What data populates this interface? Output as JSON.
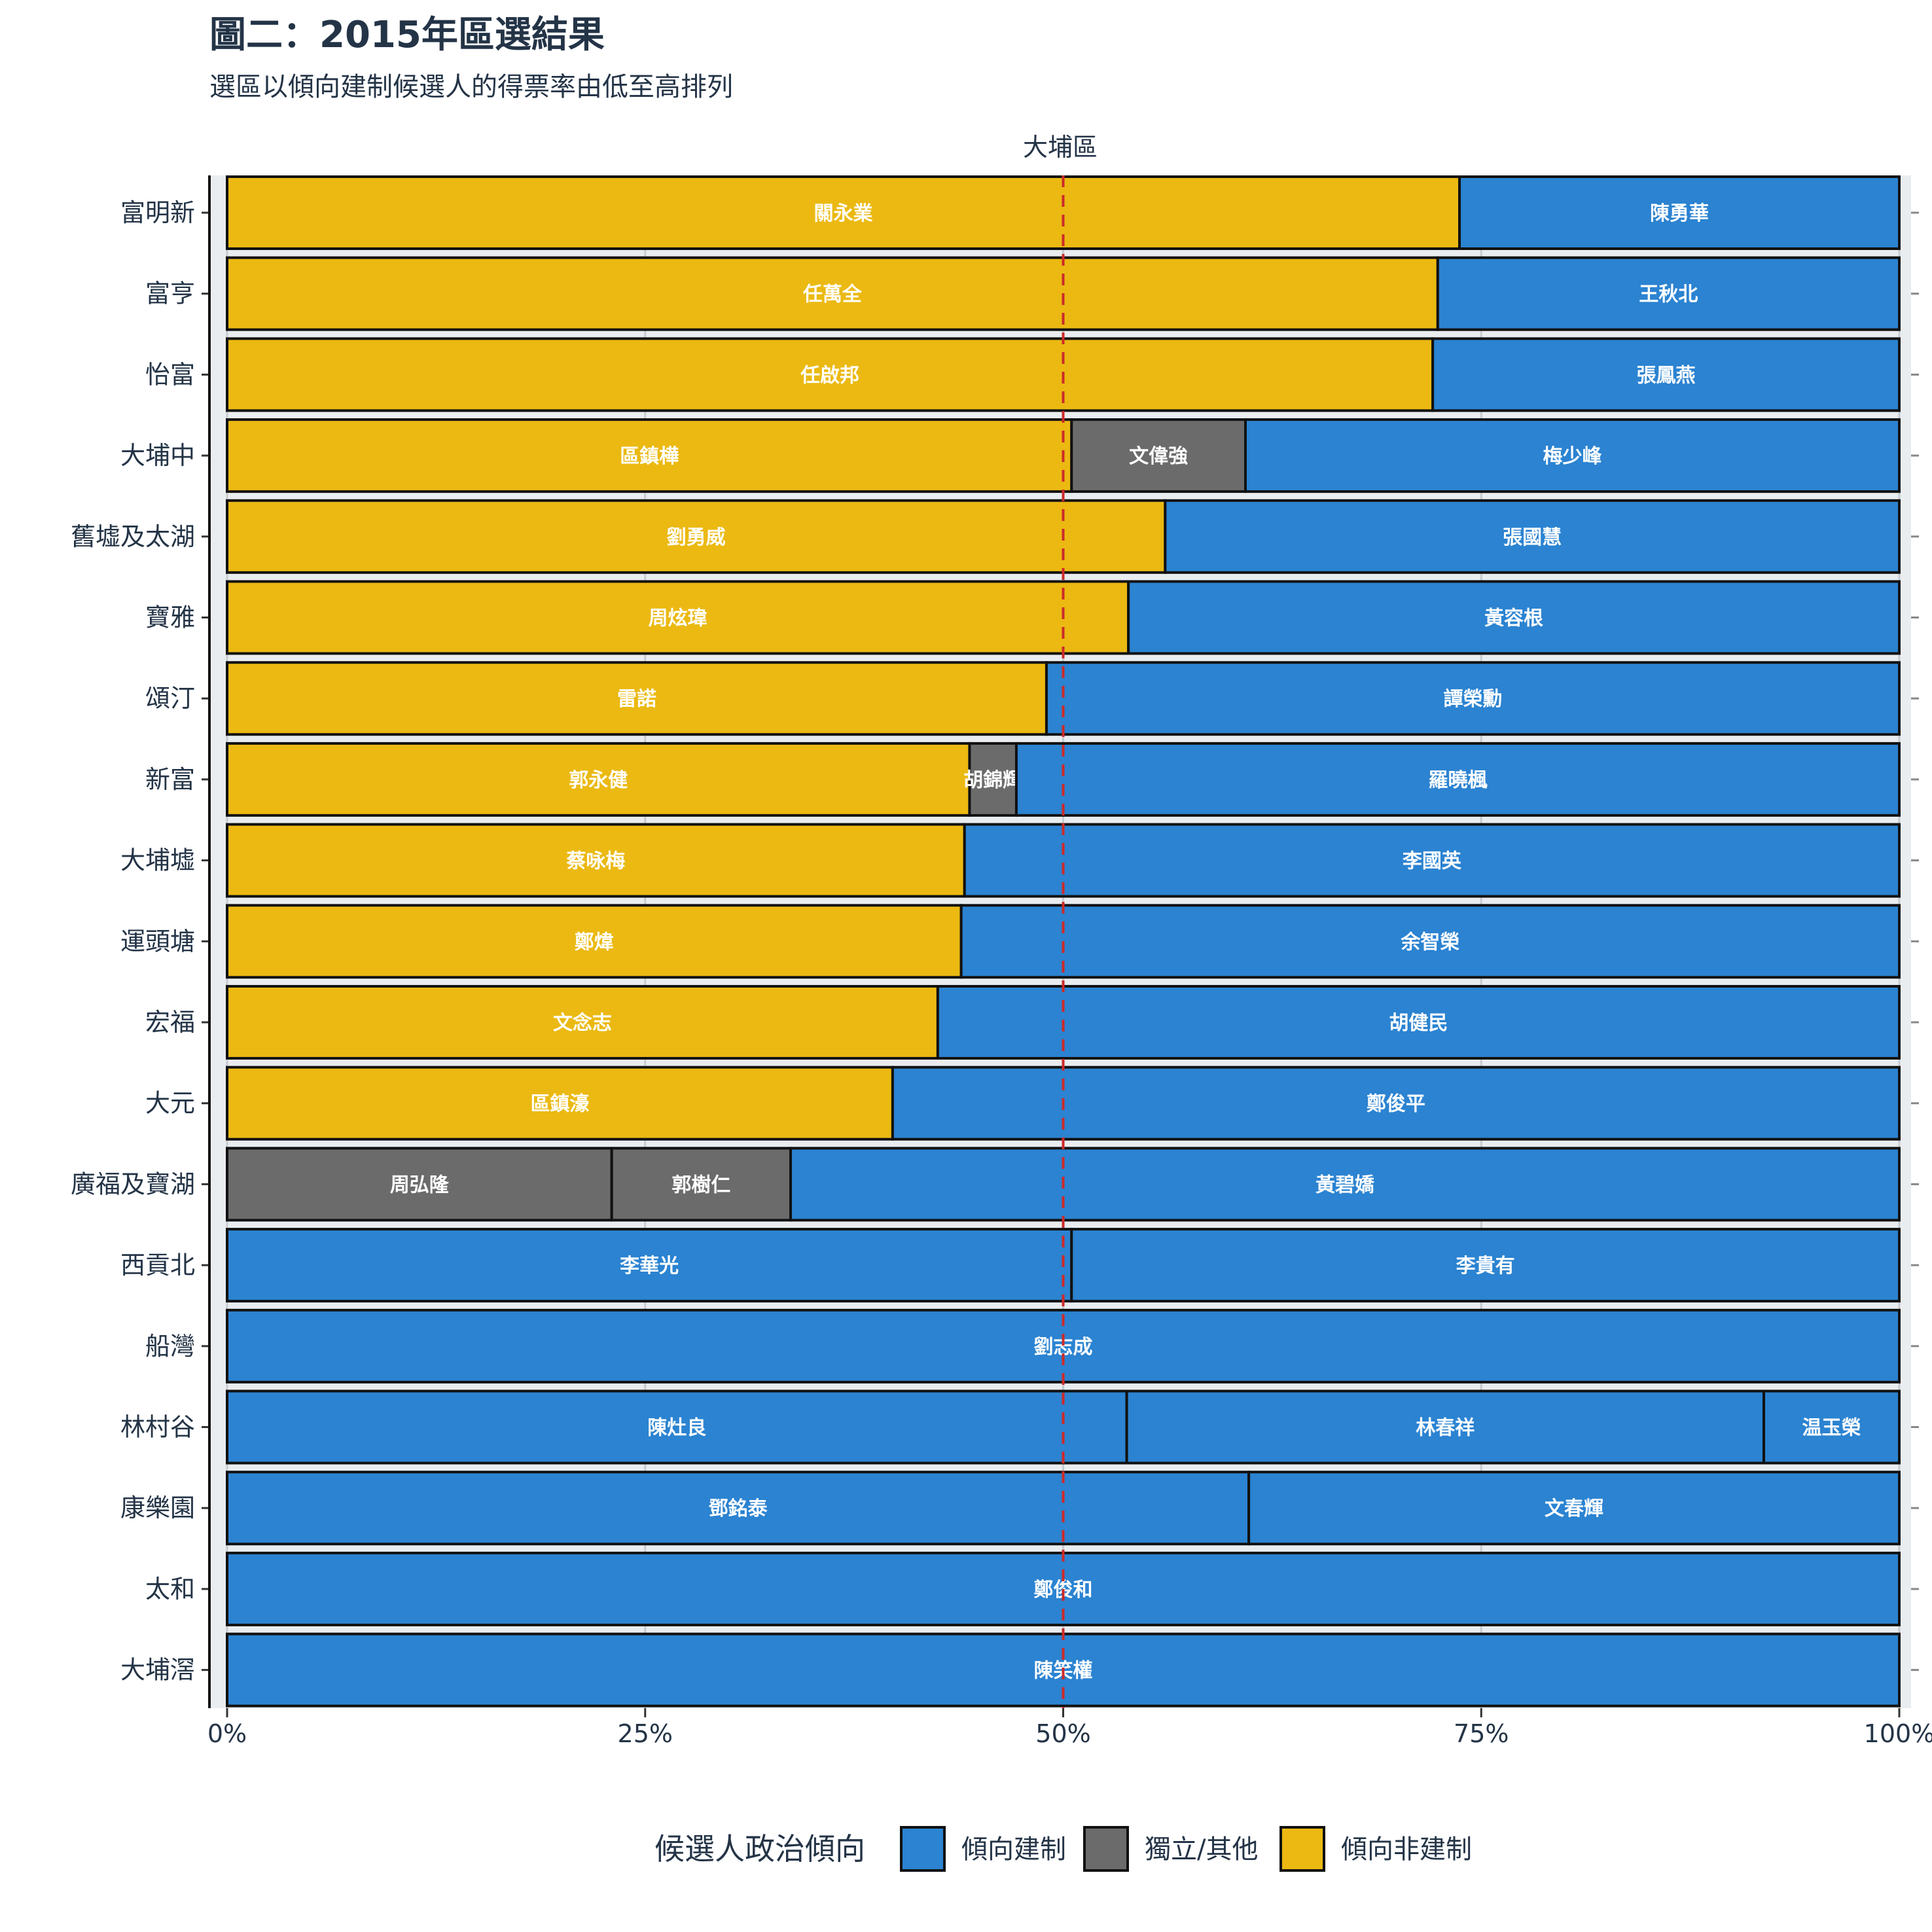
{
  "title": "圖二：2015年區選結果",
  "subtitle": "選區以傾向建制候選人的得票率由低至高排列",
  "colors": {
    "建制": "#2b83d1",
    "其他": "#6b6b6b",
    "非建制": "#ebb912",
    "ref_line": "#cc2a2a",
    "panel": "#eaedf0"
  },
  "chart_data": {
    "type": "bar",
    "orientation": "horizontal",
    "stacked_percent": true,
    "title": "圖二：2015年區選結果",
    "subtitle": "選區以傾向建制候選人的得票率由低至高排列",
    "facet": "大埔區",
    "xlabel": "",
    "ylabel": "",
    "xlim": [
      0,
      1
    ],
    "x_ticks": [
      {
        "value": 0,
        "label": "0%"
      },
      {
        "value": 0.25,
        "label": "25%"
      },
      {
        "value": 0.5,
        "label": "50%"
      },
      {
        "value": 0.75,
        "label": "75%"
      },
      {
        "value": 1,
        "label": "100%"
      }
    ],
    "reference_line": {
      "x": 0.5,
      "style": "dashed"
    },
    "legend": {
      "title": "候選人政治傾向",
      "position": "bottom",
      "items": [
        {
          "key": "建制",
          "label": "傾向建制"
        },
        {
          "key": "其他",
          "label": "獨立/其他"
        },
        {
          "key": "非建制",
          "label": "傾向非建制"
        }
      ]
    },
    "districts": [
      {
        "name": "富明新",
        "segments": [
          {
            "candidate": "關永業",
            "camp": "非建制",
            "share": 0.737
          },
          {
            "candidate": "陳勇華",
            "camp": "建制",
            "share": 0.263
          }
        ]
      },
      {
        "name": "富亨",
        "segments": [
          {
            "candidate": "任萬全",
            "camp": "非建制",
            "share": 0.724
          },
          {
            "candidate": "王秋北",
            "camp": "建制",
            "share": 0.276
          }
        ]
      },
      {
        "name": "怡富",
        "segments": [
          {
            "candidate": "任啟邦",
            "camp": "非建制",
            "share": 0.721
          },
          {
            "candidate": "張鳳燕",
            "camp": "建制",
            "share": 0.279
          }
        ]
      },
      {
        "name": "大埔中",
        "segments": [
          {
            "candidate": "區鎮樺",
            "camp": "非建制",
            "share": 0.505
          },
          {
            "candidate": "文偉強",
            "camp": "其他",
            "share": 0.104
          },
          {
            "candidate": "梅少峰",
            "camp": "建制",
            "share": 0.391
          }
        ]
      },
      {
        "name": "舊墟及太湖",
        "segments": [
          {
            "candidate": "劉勇威",
            "camp": "非建制",
            "share": 0.561
          },
          {
            "candidate": "張國慧",
            "camp": "建制",
            "share": 0.439
          }
        ]
      },
      {
        "name": "寶雅",
        "segments": [
          {
            "candidate": "周炫瑋",
            "camp": "非建制",
            "share": 0.539
          },
          {
            "candidate": "黃容根",
            "camp": "建制",
            "share": 0.461
          }
        ]
      },
      {
        "name": "頌汀",
        "segments": [
          {
            "candidate": "雷諾",
            "camp": "非建制",
            "share": 0.49
          },
          {
            "candidate": "譚榮勳",
            "camp": "建制",
            "share": 0.51
          }
        ]
      },
      {
        "name": "新富",
        "segments": [
          {
            "candidate": "郭永健",
            "camp": "非建制",
            "share": 0.444
          },
          {
            "candidate": "胡錦輝",
            "camp": "其他",
            "share": 0.028
          },
          {
            "candidate": "羅曉楓",
            "camp": "建制",
            "share": 0.528
          }
        ]
      },
      {
        "name": "大埔墟",
        "segments": [
          {
            "candidate": "蔡咏梅",
            "camp": "非建制",
            "share": 0.441
          },
          {
            "candidate": "李國英",
            "camp": "建制",
            "share": 0.559
          }
        ]
      },
      {
        "name": "運頭塘",
        "segments": [
          {
            "candidate": "鄭煒",
            "camp": "非建制",
            "share": 0.439
          },
          {
            "candidate": "余智榮",
            "camp": "建制",
            "share": 0.561
          }
        ]
      },
      {
        "name": "宏福",
        "segments": [
          {
            "candidate": "文念志",
            "camp": "非建制",
            "share": 0.425
          },
          {
            "candidate": "胡健民",
            "camp": "建制",
            "share": 0.575
          }
        ]
      },
      {
        "name": "大元",
        "segments": [
          {
            "candidate": "區鎮濠",
            "camp": "非建制",
            "share": 0.398
          },
          {
            "candidate": "鄭俊平",
            "camp": "建制",
            "share": 0.602
          }
        ]
      },
      {
        "name": "廣福及寶湖",
        "segments": [
          {
            "candidate": "周弘隆",
            "camp": "其他",
            "share": 0.23
          },
          {
            "candidate": "郭樹仁",
            "camp": "其他",
            "share": 0.107
          },
          {
            "candidate": "黃碧嬌",
            "camp": "建制",
            "share": 0.663
          }
        ]
      },
      {
        "name": "西貢北",
        "segments": [
          {
            "candidate": "李華光",
            "camp": "建制",
            "share": 0.505
          },
          {
            "candidate": "李貴有",
            "camp": "建制",
            "share": 0.495
          }
        ]
      },
      {
        "name": "船灣",
        "segments": [
          {
            "candidate": "劉志成",
            "camp": "建制",
            "share": 1.0
          }
        ]
      },
      {
        "name": "林村谷",
        "segments": [
          {
            "candidate": "陳灶良",
            "camp": "建制",
            "share": 0.538
          },
          {
            "candidate": "林春祥",
            "camp": "建制",
            "share": 0.381
          },
          {
            "candidate": "温玉榮",
            "camp": "建制",
            "share": 0.081
          }
        ]
      },
      {
        "name": "康樂園",
        "segments": [
          {
            "candidate": "鄧銘泰",
            "camp": "建制",
            "share": 0.611
          },
          {
            "candidate": "文春輝",
            "camp": "建制",
            "share": 0.389
          }
        ]
      },
      {
        "name": "太和",
        "segments": [
          {
            "candidate": "鄭俊和",
            "camp": "建制",
            "share": 1.0
          }
        ]
      },
      {
        "name": "大埔滘",
        "segments": [
          {
            "candidate": "陳笑權",
            "camp": "建制",
            "share": 1.0
          }
        ]
      }
    ]
  }
}
